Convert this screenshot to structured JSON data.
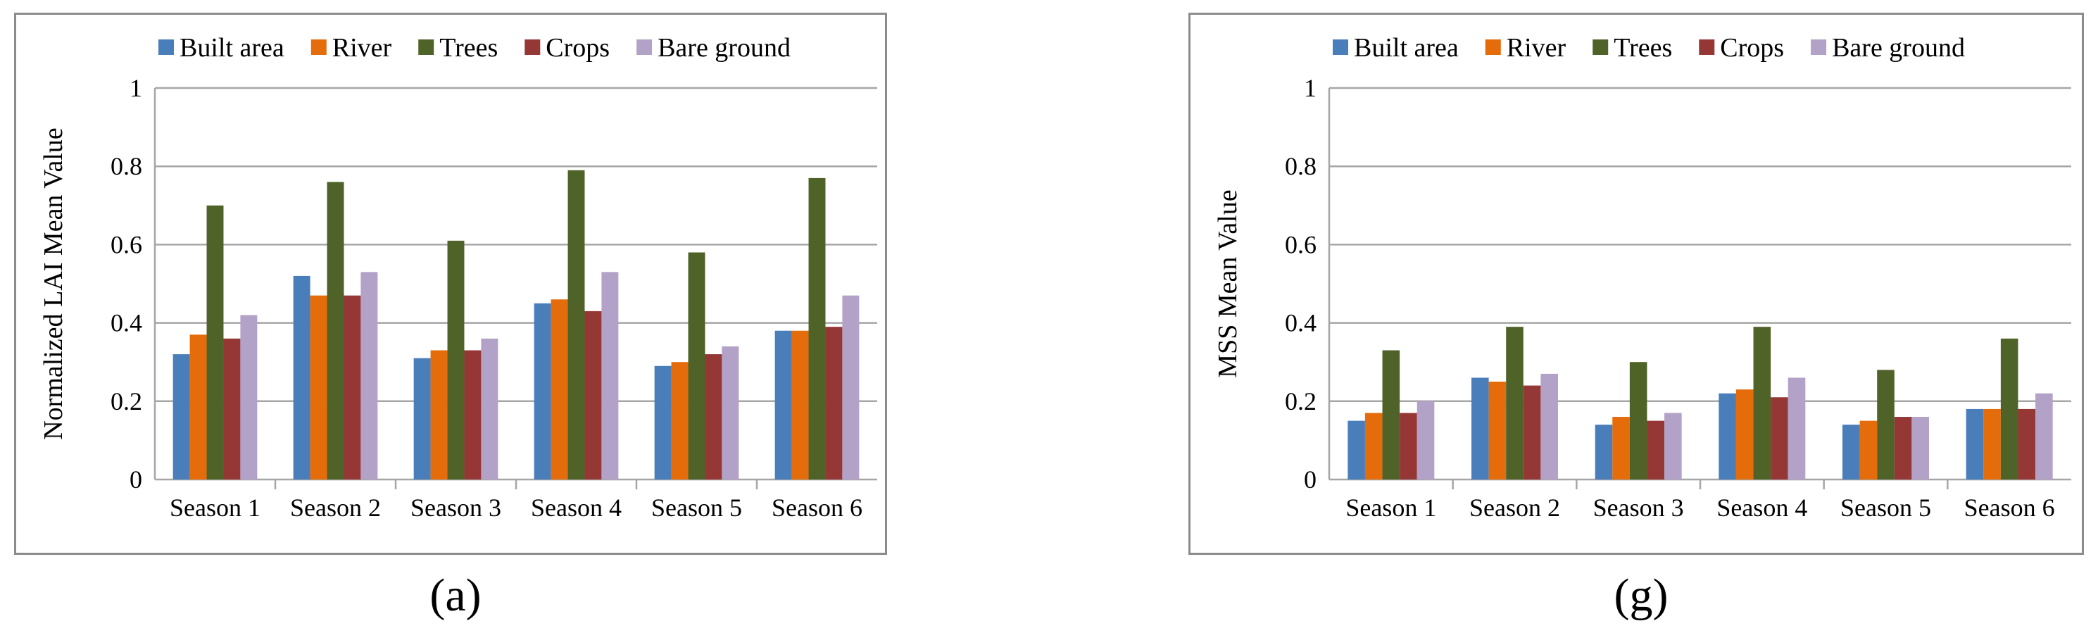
{
  "colors": {
    "built_area": "#4a7ebb",
    "river": "#e46c0a",
    "trees": "#4f6228",
    "crops": "#953735",
    "bare_ground": "#b3a2c7",
    "grid": "#a6a6a6",
    "frame": "#8c8c8c"
  },
  "chart_data": [
    {
      "type": "bar",
      "panel_label": "(a)",
      "title": "",
      "xlabel": "",
      "ylabel": "Normalized LAI Mean Value",
      "ylim": [
        0,
        1
      ],
      "yticks": [
        "0",
        "0.2",
        "0.4",
        "0.6",
        "0.8",
        "1"
      ],
      "grid": true,
      "legend_position": "top",
      "categories": [
        "Season 1",
        "Season 2",
        "Season 3",
        "Season 4",
        "Season 5",
        "Season 6"
      ],
      "series": [
        {
          "name": "Built area",
          "color_key": "built_area",
          "values": [
            0.32,
            0.52,
            0.31,
            0.45,
            0.29,
            0.38
          ]
        },
        {
          "name": "River",
          "color_key": "river",
          "values": [
            0.37,
            0.47,
            0.33,
            0.46,
            0.3,
            0.38
          ]
        },
        {
          "name": "Trees",
          "color_key": "trees",
          "values": [
            0.7,
            0.76,
            0.61,
            0.79,
            0.58,
            0.77
          ]
        },
        {
          "name": "Crops",
          "color_key": "crops",
          "values": [
            0.36,
            0.47,
            0.33,
            0.43,
            0.32,
            0.39
          ]
        },
        {
          "name": "Bare ground",
          "color_key": "bare_ground",
          "values": [
            0.42,
            0.53,
            0.36,
            0.53,
            0.34,
            0.47
          ]
        }
      ]
    },
    {
      "type": "bar",
      "panel_label": "(g)",
      "title": "",
      "xlabel": "",
      "ylabel": "MSS Mean Value",
      "ylim": [
        0,
        1
      ],
      "yticks": [
        "0",
        "0.2",
        "0.4",
        "0.6",
        "0.8",
        "1"
      ],
      "grid": true,
      "legend_position": "top",
      "categories": [
        "Season 1",
        "Season 2",
        "Season 3",
        "Season 4",
        "Season 5",
        "Season 6"
      ],
      "series": [
        {
          "name": "Built area",
          "color_key": "built_area",
          "values": [
            0.15,
            0.26,
            0.14,
            0.22,
            0.14,
            0.18
          ]
        },
        {
          "name": "River",
          "color_key": "river",
          "values": [
            0.17,
            0.25,
            0.16,
            0.23,
            0.15,
            0.18
          ]
        },
        {
          "name": "Trees",
          "color_key": "trees",
          "values": [
            0.33,
            0.39,
            0.3,
            0.39,
            0.28,
            0.36
          ]
        },
        {
          "name": "Crops",
          "color_key": "crops",
          "values": [
            0.17,
            0.24,
            0.15,
            0.21,
            0.16,
            0.18
          ]
        },
        {
          "name": "Bare ground",
          "color_key": "bare_ground",
          "values": [
            0.2,
            0.27,
            0.17,
            0.26,
            0.16,
            0.22
          ]
        }
      ]
    }
  ]
}
